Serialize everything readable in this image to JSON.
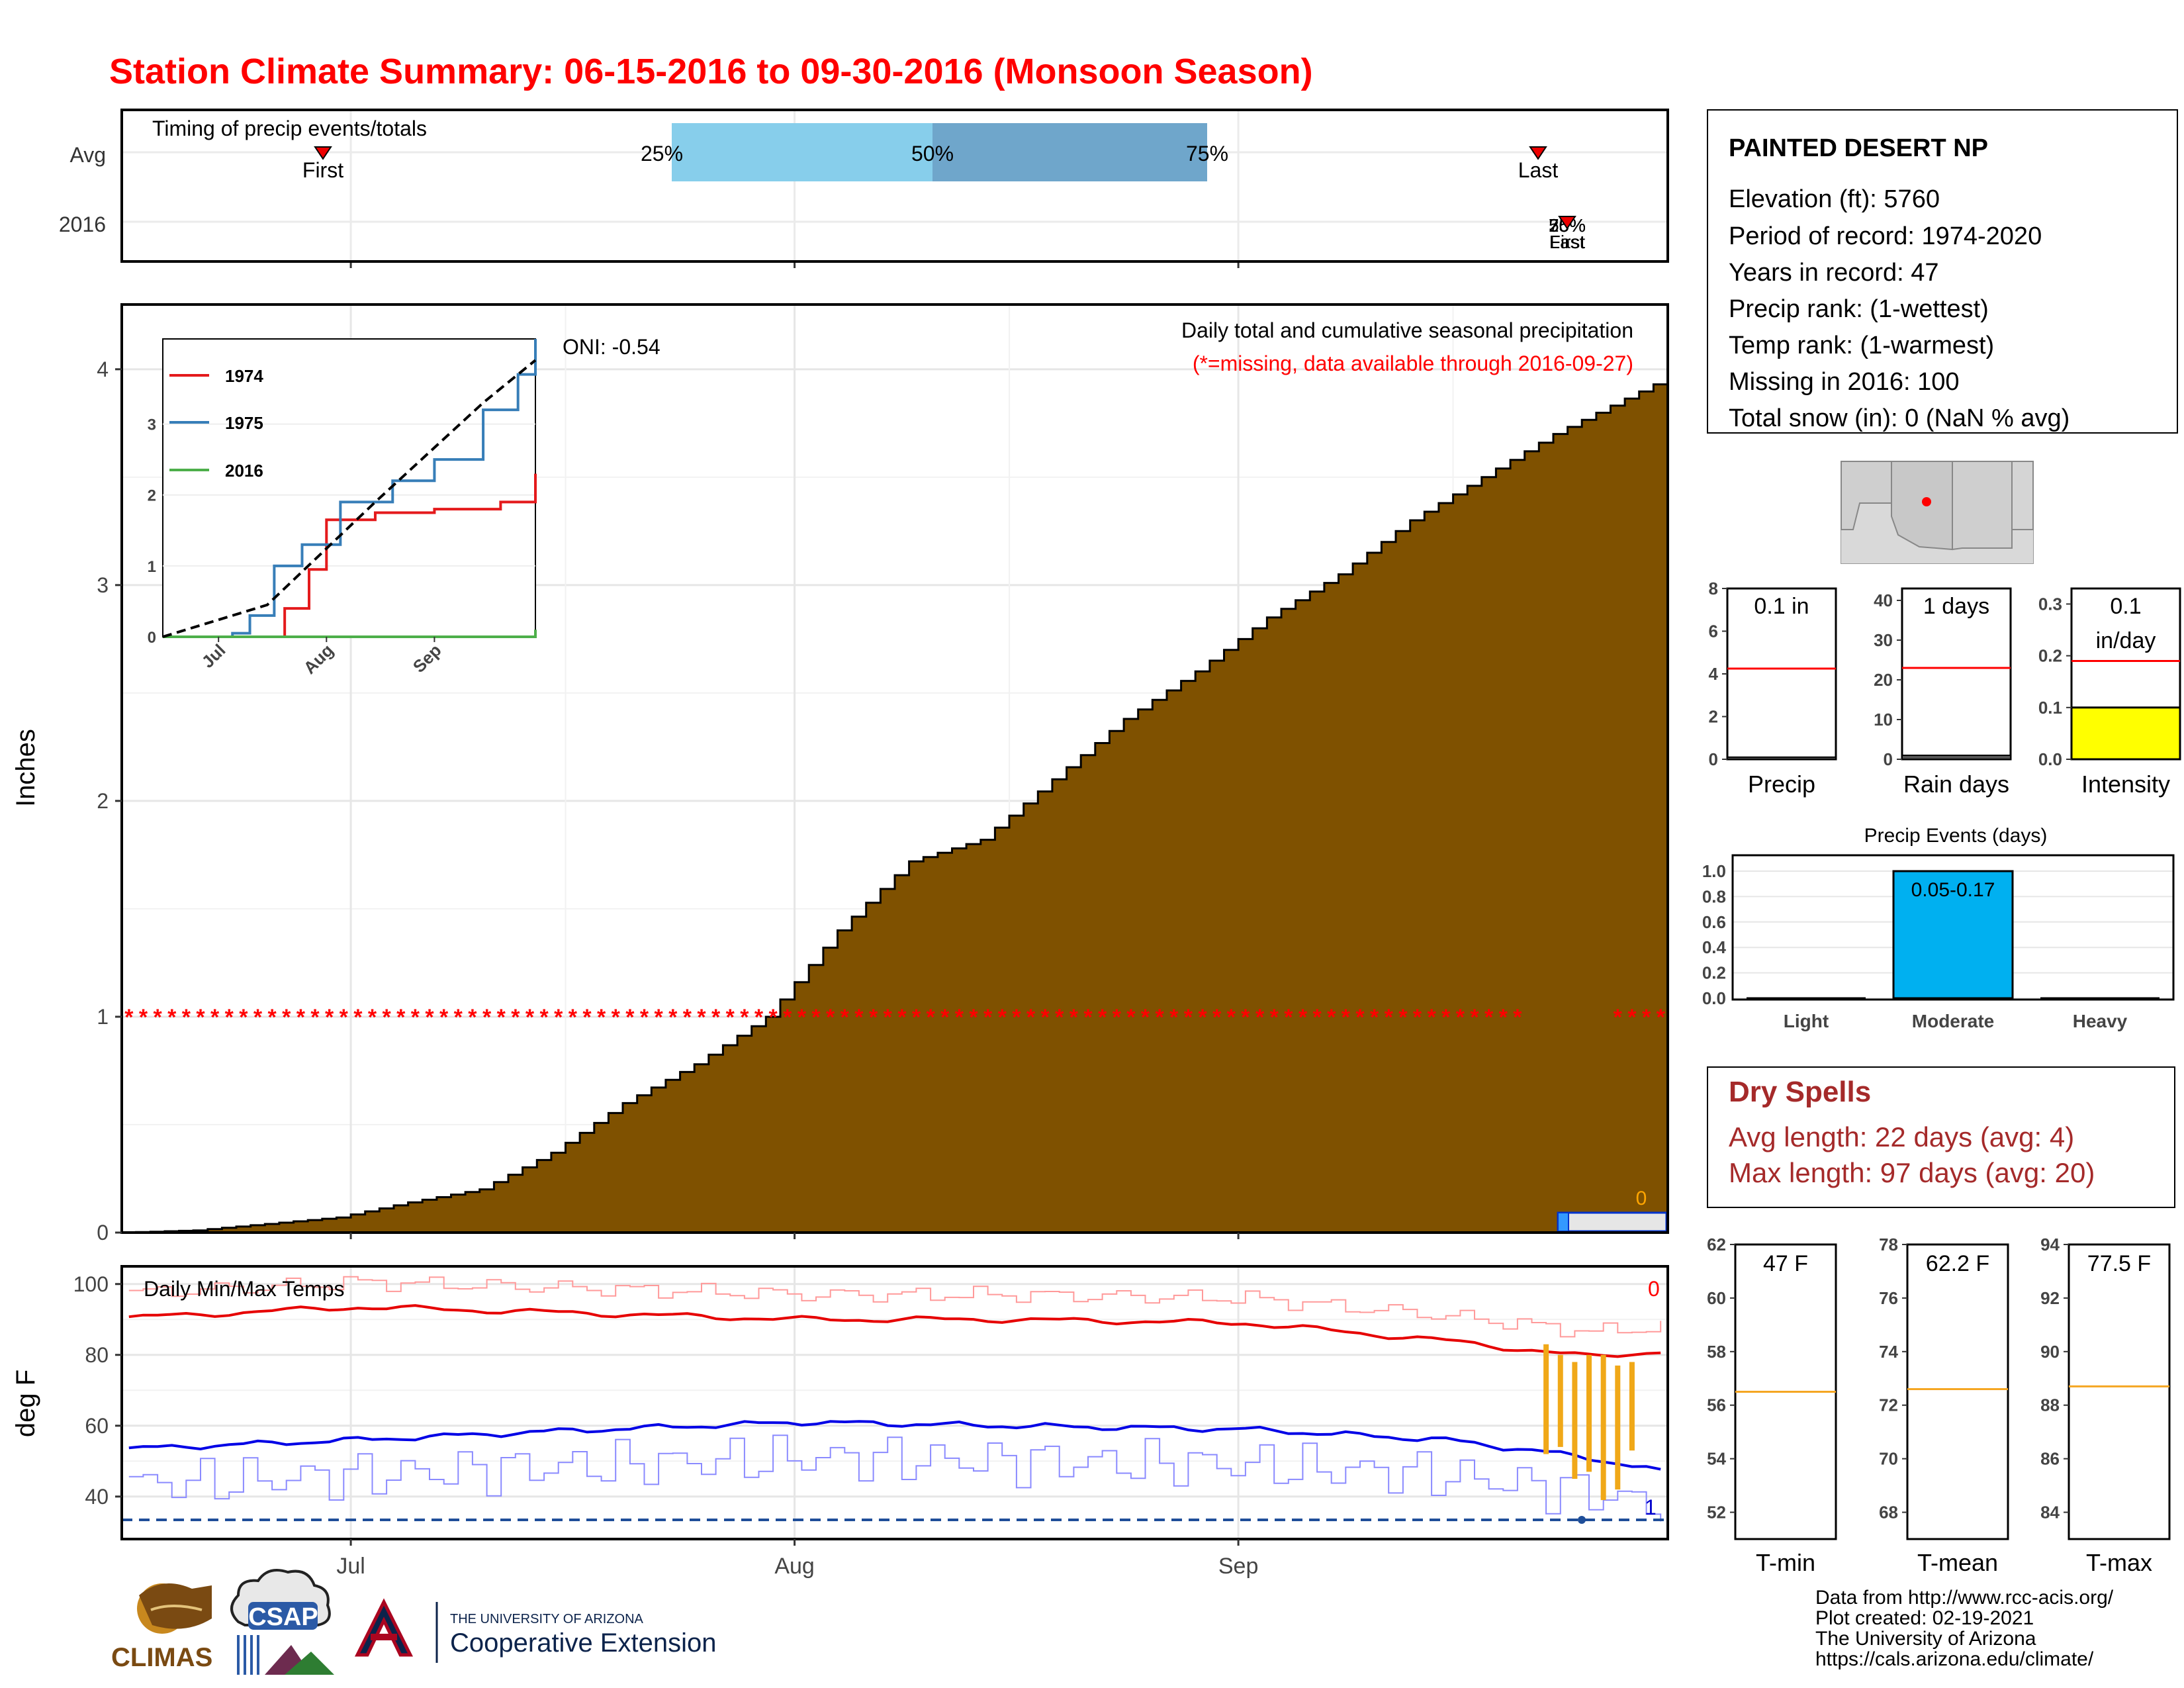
{
  "title": "Station Climate Summary: 06-15-2016 to 09-30-2016 (Monsoon Season)",
  "colors": {
    "title": "#ff0000",
    "precip_fill": "#7f5100",
    "avg_line": "#ff0000",
    "tmax": "#e60000",
    "tmin": "#0000e6",
    "pct_light": "#87ceeb",
    "pct_dark": "#6fa6cb",
    "intensity": "#ffff00",
    "events": "#00b0f0",
    "dryspell": "#a52a2a",
    "temp_ref": "#f5a623"
  },
  "timing": {
    "label": "Timing of precip events/totals",
    "rows": [
      "Avg",
      "2016"
    ],
    "pct_labels": [
      "25%",
      "50%",
      "75%"
    ],
    "first_label": "First",
    "last_label": "Last",
    "overlap_labels": [
      "75%",
      "50%",
      "25%",
      "First",
      "Last"
    ]
  },
  "main": {
    "ylabel": "Inches",
    "subtitle": "Daily total and cumulative seasonal precipitation",
    "missing_note": "(*=missing, data available through 2016-09-27)",
    "oni": "ONI: -0.54",
    "missing_marker": "*",
    "zero_label": "0",
    "y_ticks": [
      "0",
      "1",
      "2",
      "3",
      "4"
    ],
    "x_ticks": [
      "Jul",
      "Aug",
      "Sep"
    ]
  },
  "inset": {
    "legend": [
      "1974",
      "1975",
      "2016"
    ],
    "y_ticks": [
      "0",
      "1",
      "2",
      "3"
    ],
    "x_ticks": [
      "Jul",
      "Aug",
      "Sep"
    ]
  },
  "temps": {
    "label": "Daily Min/Max Temps",
    "ylabel": "deg F",
    "y_ticks": [
      "40",
      "60",
      "80",
      "100"
    ],
    "count_max": "0",
    "count_min": "1"
  },
  "station": {
    "name": "PAINTED DESERT NP",
    "lines": [
      "Elevation (ft): 5760",
      "Period of record: 1974-2020",
      "Years in record: 47",
      "Precip rank:  (1-wettest)",
      "Temp rank:  (1-warmest)",
      "Missing in 2016: 100",
      "Total snow (in): 0 (NaN % avg)"
    ]
  },
  "small_bars": {
    "precip": {
      "label": "Precip",
      "value_label": "0.1 in",
      "ticks": [
        "0",
        "2",
        "4",
        "6",
        "8"
      ],
      "ymax": 8,
      "value": 0.1,
      "avg": 4.25
    },
    "rain_days": {
      "label": "Rain days",
      "value_label": "1 days",
      "ticks": [
        "0",
        "10",
        "20",
        "30",
        "40"
      ],
      "ymax": 43,
      "value": 1,
      "avg": 23
    },
    "intensity": {
      "label": "Intensity",
      "value_label_1": "0.1",
      "value_label_2": "in/day",
      "ticks": [
        "0.0",
        "0.1",
        "0.2",
        "0.3"
      ],
      "ymax": 0.33,
      "value": 0.1,
      "avg": 0.19
    }
  },
  "events": {
    "title": "Precip Events (days)",
    "ticks": [
      "0.0",
      "0.2",
      "0.4",
      "0.6",
      "0.8",
      "1.0"
    ],
    "categories": [
      "Light",
      "Moderate",
      "Heavy"
    ],
    "values": [
      0,
      1,
      0
    ],
    "bar_label": "0.05-0.17"
  },
  "dry_spells": {
    "title": "Dry Spells",
    "avg_line": "Avg length: 22 days (avg: 4)",
    "max_line": "Max length: 97 days (avg: 20)"
  },
  "temp_bars": {
    "tmin": {
      "label": "T-min",
      "value_label": "47 F",
      "ticks": [
        "52",
        "54",
        "56",
        "58",
        "60",
        "62"
      ],
      "ymin": 51,
      "ymax": 62,
      "avg": 56.5
    },
    "tmean": {
      "label": "T-mean",
      "value_label": "62.2 F",
      "ticks": [
        "68",
        "70",
        "72",
        "74",
        "76",
        "78"
      ],
      "ymin": 67,
      "ymax": 78,
      "avg": 72.6
    },
    "tmax": {
      "label": "T-max",
      "value_label": "77.5 F",
      "ticks": [
        "84",
        "86",
        "88",
        "90",
        "92",
        "94"
      ],
      "ymin": 83,
      "ymax": 94,
      "avg": 88.7
    }
  },
  "footer": {
    "credits": [
      "Data from http://www.rcc-acis.org/",
      "Plot created: 02-19-2021",
      "The University of Arizona",
      "https://cals.arizona.edu/climate/"
    ],
    "logo_climas": "CLIMAS",
    "logo_csap": "CSAP",
    "logo_ua_top": "THE UNIVERSITY OF ARIZONA",
    "logo_ua_bottom": "Cooperative Extension"
  },
  "chart_data": [
    {
      "type": "area",
      "title": "Daily total and cumulative seasonal precipitation",
      "ylabel": "Inches",
      "ylim": [
        0,
        4.3
      ],
      "x_range": [
        "2016-06-15",
        "2016-09-30"
      ],
      "series": [
        {
          "name": "",
          "x": [
            "2016-06-15",
            "2016-06-20",
            "2016-06-25",
            "2016-06-30",
            "2016-07-05",
            "2016-07-10",
            "2016-07-15",
            "2016-07-20",
            "2016-07-25",
            "2016-07-30",
            "2016-08-04",
            "2016-08-09",
            "2016-08-14",
            "2016-08-19",
            "2016-08-24",
            "2016-08-29",
            "2016-09-03",
            "2016-09-08",
            "2016-09-13",
            "2016-09-18",
            "2016-09-23",
            "2016-09-30"
          ],
          "values": [
            0.0,
            0.01,
            0.04,
            0.07,
            0.14,
            0.2,
            0.37,
            0.6,
            0.78,
            1.0,
            1.4,
            1.72,
            1.82,
            2.1,
            2.38,
            2.6,
            2.85,
            3.05,
            3.3,
            3.5,
            3.7,
            3.93
          ]
        }
      ],
      "missing_days_marker_y": 1.0
    },
    {
      "type": "line",
      "title": "",
      "ylim": [
        0,
        4.2
      ],
      "series": [
        {
          "name": "1974",
          "x": [
            "2016-06-15",
            "2016-07-15",
            "2016-07-20",
            "2016-07-27",
            "2016-08-01",
            "2016-08-15",
            "2016-09-01",
            "2016-09-20",
            "2016-09-30"
          ],
          "values": [
            0,
            0,
            0.4,
            0.95,
            1.65,
            1.75,
            1.8,
            1.9,
            2.3
          ]
        },
        {
          "name": "1975",
          "x": [
            "2016-06-15",
            "2016-07-05",
            "2016-07-10",
            "2016-07-17",
            "2016-07-25",
            "2016-08-05",
            "2016-08-20",
            "2016-09-01",
            "2016-09-15",
            "2016-09-25",
            "2016-09-30"
          ],
          "values": [
            0,
            0.05,
            0.3,
            1.0,
            1.3,
            1.9,
            2.2,
            2.5,
            3.2,
            3.7,
            4.2
          ]
        },
        {
          "name": "2016",
          "x": [
            "2016-06-15",
            "2016-09-27",
            "2016-09-30"
          ],
          "values": [
            0,
            0,
            0.1
          ]
        },
        {
          "name": "",
          "x": [
            "2016-06-15",
            "2016-07-15",
            "2016-08-15",
            "2016-09-15",
            "2016-09-30"
          ],
          "values": [
            0,
            0.45,
            1.9,
            3.3,
            3.9
          ]
        }
      ]
    },
    {
      "type": "line",
      "title": "Daily Min/Max Temps",
      "ylabel": "deg F",
      "ylim": [
        28,
        105
      ],
      "series": [
        {
          "name": "",
          "x": [
            "2016-06-15",
            "2016-07-01",
            "2016-07-15",
            "2016-08-01",
            "2016-08-15",
            "2016-09-01",
            "2016-09-15",
            "2016-09-25",
            "2016-09-30"
          ],
          "values": [
            90.5,
            93.5,
            92,
            90,
            90,
            89,
            84,
            79.5,
            81
          ]
        },
        {
          "name": "",
          "x": [
            "2016-06-15",
            "2016-07-01",
            "2016-07-15",
            "2016-08-01",
            "2016-08-15",
            "2016-09-01",
            "2016-09-15",
            "2016-09-25",
            "2016-09-30"
          ],
          "values": [
            53.5,
            56,
            58.5,
            61,
            60,
            59,
            56,
            51,
            47
          ]
        }
      ]
    }
  ]
}
